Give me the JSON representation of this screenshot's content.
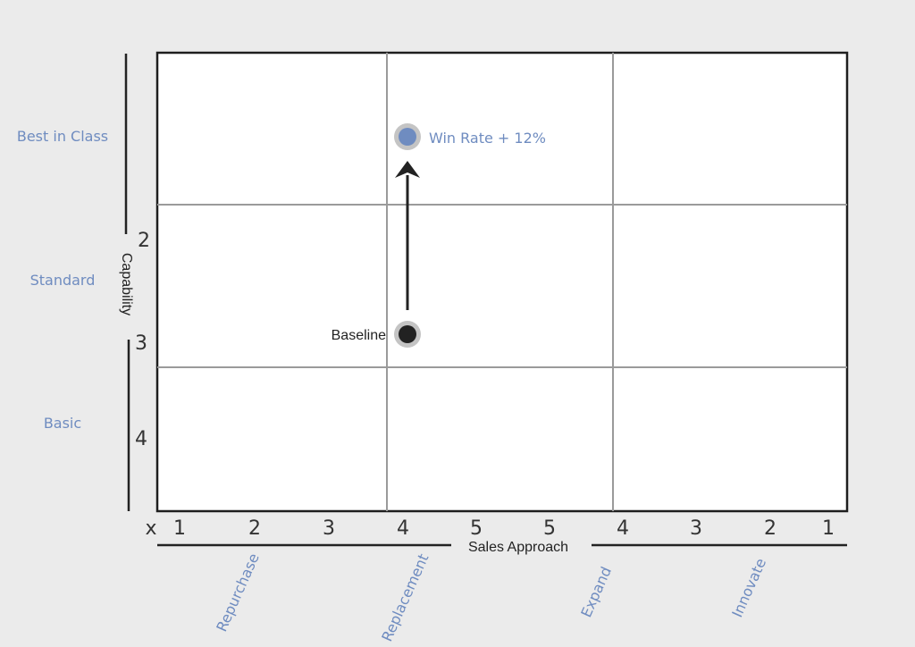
{
  "chart_data": {
    "type": "scatter",
    "title": "",
    "xlabel": "Sales Approach",
    "ylabel": "Capability",
    "x_tick_labels": [
      "x",
      "1",
      "2",
      "3",
      "4",
      "5",
      "5",
      "4",
      "3",
      "2",
      "1"
    ],
    "y_tick_labels": [
      "2",
      "3",
      "4"
    ],
    "x_categories": [
      "Repurchase",
      "Replacement",
      "Expand",
      "Innovate"
    ],
    "y_categories": [
      "Best in Class",
      "Standard",
      "Basic"
    ],
    "grid": true,
    "points": [
      {
        "label": "Baseline",
        "x": 4.1,
        "y": "Standard",
        "color": "#222222"
      },
      {
        "label": "Win Rate + 12%",
        "x": 4.1,
        "y": "Best in Class",
        "color": "#6f8cc0"
      }
    ],
    "arrow": {
      "from": "Baseline",
      "to": "Win Rate + 12%"
    }
  },
  "colors": {
    "background": "#ebebeb",
    "plot_bg": "#ffffff",
    "accent": "#6f8cc0",
    "text": "#222222",
    "grid": "#9a9a9a"
  }
}
